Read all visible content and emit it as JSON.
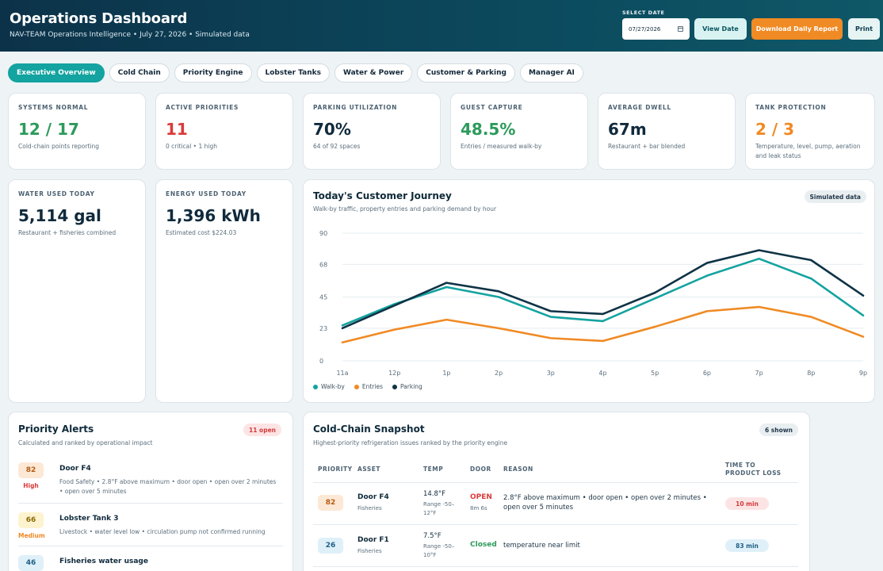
{
  "header": {
    "title": "Operations Dashboard",
    "subtitle": "NAV-TEAM Operations Intelligence • July 27, 2026 • Simulated data",
    "date_label": "SELECT DATE",
    "date_value": "07/27/2026",
    "view_date_label": "View Date",
    "download_label": "Download Daily Report",
    "print_label": "Print"
  },
  "tabs": [
    {
      "label": "Executive Overview",
      "active": true
    },
    {
      "label": "Cold Chain"
    },
    {
      "label": "Priority Engine"
    },
    {
      "label": "Lobster Tanks"
    },
    {
      "label": "Water & Power"
    },
    {
      "label": "Customer & Parking"
    },
    {
      "label": "Manager AI"
    }
  ],
  "kpis": [
    {
      "label": "SYSTEMS NORMAL",
      "value": "12 / 17",
      "sub": "Cold-chain points reporting",
      "color": "green"
    },
    {
      "label": "ACTIVE PRIORITIES",
      "value": "11",
      "sub": "0 critical • 1 high",
      "color": "red"
    },
    {
      "label": "PARKING UTILIZATION",
      "value": "70%",
      "sub": "64 of 92 spaces",
      "color": ""
    },
    {
      "label": "GUEST CAPTURE",
      "value": "48.5%",
      "sub": "Entries / measured walk-by",
      "color": "green"
    },
    {
      "label": "AVERAGE DWELL",
      "value": "67m",
      "sub": "Restaurant + bar blended",
      "color": ""
    },
    {
      "label": "TANK PROTECTION",
      "value": "2 / 3",
      "sub": "Temperature, level, pump, aeration and leak status",
      "color": "orange"
    },
    {
      "label": "WATER USED TODAY",
      "value": "5,114 gal",
      "sub": "Restaurant + fisheries combined",
      "color": ""
    },
    {
      "label": "ENERGY USED TODAY",
      "value": "1,396 kWh",
      "sub": "Estimated cost $224.03",
      "color": ""
    }
  ],
  "journey": {
    "title": "Today's Customer Journey",
    "subtitle": "Walk-by traffic, property entries and parking demand by hour",
    "badge": "Simulated data"
  },
  "chart_data": {
    "type": "line",
    "title": "Today's Customer Journey",
    "x": [
      "11a",
      "12p",
      "1p",
      "2p",
      "3p",
      "4p",
      "5p",
      "6p",
      "7p",
      "8p",
      "9p"
    ],
    "yticks": [
      "0",
      "23",
      "45",
      "68",
      "90"
    ],
    "ylim": [
      0,
      90
    ],
    "grid": true,
    "legend_position": "bottom-left",
    "series": [
      {
        "name": "Walk-by",
        "color": "#14a3a0",
        "values": [
          25,
          40,
          52,
          45,
          31,
          28,
          44,
          60,
          72,
          58,
          32
        ]
      },
      {
        "name": "Entries",
        "color": "#f08a24",
        "values": [
          13,
          22,
          29,
          23,
          16,
          14,
          24,
          35,
          38,
          31,
          17
        ]
      },
      {
        "name": "Parking",
        "color": "#0f3346",
        "values": [
          23,
          39,
          55,
          49,
          35,
          33,
          48,
          69,
          78,
          71,
          46
        ]
      }
    ]
  },
  "priority_alerts": {
    "title": "Priority Alerts",
    "subtitle": "Calculated and ranked by operational impact",
    "badge": "11 open",
    "items": [
      {
        "score": "82",
        "severity": "High",
        "name": "Door F4",
        "desc": "Food Safety • 2.8°F above maximum • door open • open over 2 minutes • open over 5 minutes"
      },
      {
        "score": "66",
        "severity": "Medium",
        "name": "Lobster Tank 3",
        "desc": "Livestock • water level low • circulation pump not confirmed running"
      },
      {
        "score": "46",
        "severity": "",
        "name": "Fisheries water usage",
        "desc": ""
      }
    ]
  },
  "cold_chain": {
    "title": "Cold-Chain Snapshot",
    "subtitle": "Highest-priority refrigeration issues ranked by the priority engine",
    "badge": "6 shown",
    "headers": [
      "PRIORITY",
      "ASSET",
      "TEMP",
      "DOOR",
      "REASON",
      "TIME TO PRODUCT LOSS"
    ],
    "rows": [
      {
        "priority": "82",
        "asset": "Door F4",
        "asset_sub": "Fisheries",
        "temp": "14.8°F",
        "range": "Range -50–12°F",
        "door": "OPEN",
        "door_sub": "8m 6s",
        "reason": "2.8°F above maximum • door open • open over 2 minutes • open over 5 minutes",
        "ttl": "10 min"
      },
      {
        "priority": "26",
        "asset": "Door F1",
        "asset_sub": "Fisheries",
        "temp": "7.5°F",
        "range": "Range -50–10°F",
        "door": "Closed",
        "door_sub": "",
        "reason": "temperature near limit",
        "ttl": "83 min"
      }
    ]
  }
}
